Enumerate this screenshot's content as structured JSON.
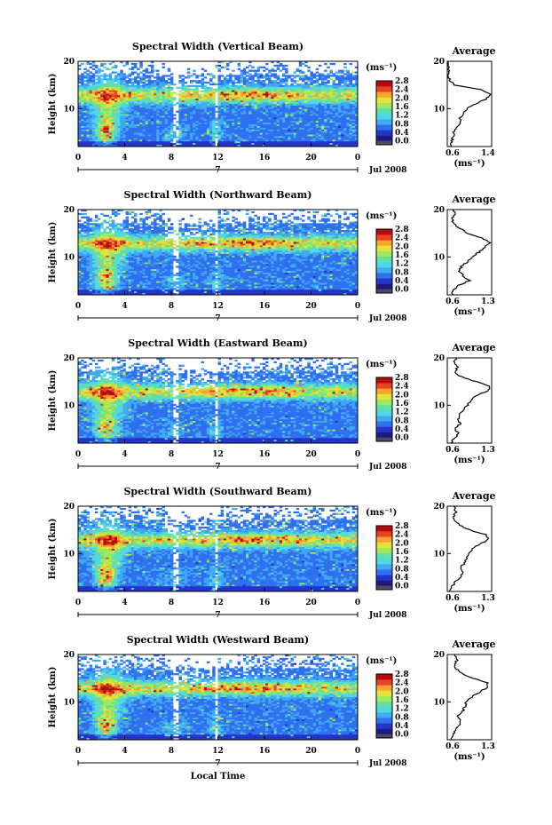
{
  "figure": {
    "xlabel": "Local Time",
    "date_label": "Jul 2008",
    "day_marker": "7",
    "units": "(ms⁻¹)",
    "average_title": "Average",
    "average_xlabel": "(ms⁻¹)"
  },
  "colors": {
    "colormap": [
      "#1c1a80",
      "#2433c8",
      "#2f6ff0",
      "#3fa9f2",
      "#4fd7e6",
      "#5fe0a8",
      "#9ee85a",
      "#e4e23c",
      "#f7a52c",
      "#e84322",
      "#b40c12"
    ],
    "lowest_bin": "#4a4a62"
  },
  "chart_data": [
    {
      "type": "heatmap",
      "title": "Spectral Width (Vertical Beam)",
      "xlabel": "",
      "ylabel": "Height (km)",
      "x_ticks": [
        "0",
        "4",
        "8",
        "12",
        "16",
        "20",
        "0"
      ],
      "y_ticks": [
        "20",
        "10"
      ],
      "xlim": [
        0,
        24
      ],
      "ylim": [
        2,
        20
      ],
      "colorbar": {
        "ticks": [
          "2.8",
          "2.4",
          "2.0",
          "1.6",
          "1.2",
          "0.8",
          "0.4",
          "0.0"
        ],
        "range": [
          0.0,
          2.8
        ]
      },
      "average_profile": {
        "xlim": [
          0.6,
          1.4
        ],
        "x_ticks": [
          "0.6",
          "1.4"
        ],
        "y_ticks": [
          "20",
          "10"
        ],
        "height_km": [
          2,
          3,
          4,
          5,
          6,
          7,
          8,
          9,
          10,
          11,
          12,
          13,
          14,
          15,
          16,
          17,
          18,
          19,
          20
        ],
        "value": [
          0.66,
          0.68,
          0.7,
          0.72,
          0.78,
          0.85,
          0.82,
          0.9,
          0.95,
          1.1,
          1.3,
          1.38,
          1.2,
          0.72,
          0.65,
          0.62,
          0.62,
          0.63,
          0.62
        ]
      }
    },
    {
      "type": "heatmap",
      "title": "Spectral Width (Northward Beam)",
      "xlabel": "",
      "ylabel": "Height (km)",
      "x_ticks": [
        "0",
        "4",
        "8",
        "12",
        "16",
        "20",
        "0"
      ],
      "y_ticks": [
        "20",
        "10"
      ],
      "xlim": [
        0,
        24
      ],
      "ylim": [
        2,
        20
      ],
      "colorbar": {
        "ticks": [
          "2.8",
          "2.4",
          "2.0",
          "1.6",
          "1.2",
          "0.8",
          "0.4",
          "0.0"
        ],
        "range": [
          0.0,
          2.8
        ]
      },
      "average_profile": {
        "xlim": [
          0.6,
          1.3
        ],
        "x_ticks": [
          "0.6",
          "1.3"
        ],
        "y_ticks": [
          "20",
          "10"
        ],
        "height_km": [
          2,
          3,
          4,
          5,
          6,
          7,
          8,
          9,
          10,
          11,
          12,
          13,
          14,
          15,
          16,
          17,
          18,
          19,
          20
        ],
        "value": [
          0.68,
          0.7,
          0.78,
          0.95,
          0.85,
          0.8,
          0.82,
          0.92,
          0.98,
          1.1,
          1.18,
          1.28,
          1.15,
          0.92,
          0.8,
          0.7,
          0.68,
          0.72,
          0.7
        ]
      }
    },
    {
      "type": "heatmap",
      "title": "Spectral Width (Eastward Beam)",
      "xlabel": "",
      "ylabel": "Height (km)",
      "x_ticks": [
        "0",
        "4",
        "8",
        "12",
        "16",
        "20",
        "0"
      ],
      "y_ticks": [
        "20",
        "10"
      ],
      "xlim": [
        0,
        24
      ],
      "ylim": [
        2,
        20
      ],
      "colorbar": {
        "ticks": [
          "2.8",
          "2.4",
          "2.0",
          "1.6",
          "1.2",
          "0.8",
          "0.4",
          "0.0"
        ],
        "range": [
          0.0,
          2.8
        ]
      },
      "average_profile": {
        "xlim": [
          0.6,
          1.3
        ],
        "x_ticks": [
          "0.6",
          "1.3"
        ],
        "y_ticks": [
          "20",
          "10"
        ],
        "height_km": [
          2,
          3,
          4,
          5,
          6,
          7,
          8,
          9,
          10,
          11,
          12,
          13,
          14,
          15,
          16,
          17,
          18,
          19,
          20
        ],
        "value": [
          0.66,
          0.7,
          0.78,
          0.72,
          0.8,
          0.78,
          0.8,
          0.85,
          0.92,
          0.98,
          1.05,
          1.22,
          1.28,
          1.05,
          0.82,
          0.72,
          0.76,
          0.7,
          0.74
        ]
      }
    },
    {
      "type": "heatmap",
      "title": "Spectral Width (Southward Beam)",
      "xlabel": "",
      "ylabel": "Height (km)",
      "x_ticks": [
        "0",
        "4",
        "8",
        "12",
        "16",
        "20",
        "0"
      ],
      "y_ticks": [
        "20",
        "10"
      ],
      "xlim": [
        0,
        24
      ],
      "ylim": [
        2,
        20
      ],
      "colorbar": {
        "ticks": [
          "2.8",
          "2.4",
          "2.0",
          "1.6",
          "1.2",
          "0.8",
          "0.4",
          "0.0"
        ],
        "range": [
          0.0,
          2.8
        ]
      },
      "average_profile": {
        "xlim": [
          0.6,
          1.3
        ],
        "x_ticks": [
          "0.6",
          "1.3"
        ],
        "y_ticks": [
          "20",
          "10"
        ],
        "height_km": [
          2,
          3,
          4,
          5,
          6,
          7,
          8,
          9,
          10,
          11,
          12,
          13,
          14,
          15,
          16,
          17,
          18,
          19,
          20
        ],
        "value": [
          0.65,
          0.68,
          0.72,
          0.8,
          0.85,
          0.8,
          0.88,
          0.9,
          0.95,
          1.0,
          1.12,
          1.25,
          1.2,
          0.95,
          0.8,
          0.72,
          0.7,
          0.74,
          0.7
        ]
      }
    },
    {
      "type": "heatmap",
      "title": "Spectral Width (Westward Beam)",
      "xlabel": "Local Time",
      "ylabel": "Height (km)",
      "x_ticks": [
        "0",
        "4",
        "8",
        "12",
        "16",
        "20",
        "0"
      ],
      "y_ticks": [
        "20",
        "10"
      ],
      "xlim": [
        0,
        24
      ],
      "ylim": [
        2,
        20
      ],
      "colorbar": {
        "ticks": [
          "2.8",
          "2.4",
          "2.0",
          "1.6",
          "1.2",
          "0.8",
          "0.4",
          "0.0"
        ],
        "range": [
          0.0,
          2.8
        ]
      },
      "average_profile": {
        "xlim": [
          0.6,
          1.3
        ],
        "x_ticks": [
          "0.6",
          "1.3"
        ],
        "y_ticks": [
          "20",
          "10"
        ],
        "height_km": [
          2,
          3,
          4,
          5,
          6,
          7,
          8,
          9,
          10,
          11,
          12,
          13,
          14,
          15,
          16,
          17,
          18,
          19,
          20
        ],
        "value": [
          0.66,
          0.68,
          0.74,
          0.78,
          0.8,
          0.76,
          0.84,
          0.88,
          0.9,
          0.98,
          1.1,
          1.22,
          1.24,
          1.0,
          0.82,
          0.74,
          0.72,
          0.76,
          0.72
        ]
      }
    }
  ]
}
